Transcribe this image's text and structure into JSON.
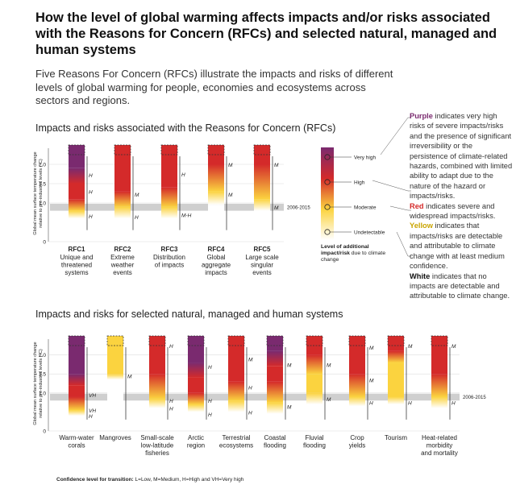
{
  "title": "How the level of global warming affects impacts and/or risks associated with the Reasons for Concern (RFCs) and selected natural, managed and human systems",
  "intro": "Five Reasons For Concern (RFCs) illustrate the impacts and risks of different levels of global warming for people, economies and ecosystems across sectors and regions.",
  "notes": [
    {
      "term": "Purple",
      "text": "indicates very high risks of severe impacts/risks and the presence of significant irreversibility or the persistence of climate-related hazards, combined with limited ability to adapt due to the nature of the hazard or impacts/risks.",
      "color": "#7a2a6f"
    },
    {
      "term": "Red",
      "text": "indicates severe and widespread impacts/risks.",
      "color": "#d42a2a"
    },
    {
      "term": "Yellow",
      "text": "indicates that impacts/risks are detectable and attributable to climate change with at least medium confidence.",
      "color": "#c9a400"
    },
    {
      "term": "White",
      "text": "indicates that no impacts are detectable and attributable to climate change.",
      "color": "#111111"
    }
  ],
  "confidence_note": {
    "label": "Confidence level  for transition:",
    "text": "L=Low, M=Medium, H=High and VH=Very high"
  },
  "chart_data": [
    {
      "type": "ember",
      "title": "Impacts and risks associated with the Reasons for Concern (RFCs)",
      "ylabel": [
        "Global mean surface temperature change",
        "relative to pre-industrial levels (°C)"
      ],
      "ylim": [
        0,
        2.5
      ],
      "yticks": [
        0,
        {
          "value": 1,
          "label": "1.0"
        },
        1.5,
        {
          "value": 2,
          "label": "2.0"
        }
      ],
      "grid": true,
      "colors": {
        "white": "#ffffff",
        "yellow": "#fbd33f",
        "red": "#d42a2a",
        "purple": "#7a2a6f"
      },
      "band": {
        "label": "2006-2015",
        "range": [
          0.8,
          0.98
        ]
      },
      "embers": [
        {
          "code": "RFC1",
          "lines": [
            "Unique and",
            "threatened",
            "systems"
          ],
          "stops": [
            {
              "t": 0.3,
              "c": "white"
            },
            {
              "t": 0.6,
              "c": "white"
            },
            {
              "t": 0.8,
              "c": "yellow"
            },
            {
              "t": 1.1,
              "c": "red"
            },
            {
              "t": 1.5,
              "c": "red"
            },
            {
              "t": 1.9,
              "c": "purple"
            },
            {
              "t": 2.5,
              "c": "purple"
            }
          ],
          "confidence": [
            {
              "t": 1.73,
              "label": "H"
            },
            {
              "t": 1.3,
              "label": "H"
            },
            {
              "t": 0.67,
              "label": "H"
            }
          ]
        },
        {
          "code": "RFC2",
          "lines": [
            "Extreme",
            "weather",
            "events"
          ],
          "stops": [
            {
              "t": 0.3,
              "c": "white"
            },
            {
              "t": 0.6,
              "c": "white"
            },
            {
              "t": 0.9,
              "c": "yellow"
            },
            {
              "t": 1.3,
              "c": "red"
            },
            {
              "t": 2.5,
              "c": "red"
            }
          ],
          "confidence": [
            {
              "t": 1.23,
              "label": "M"
            },
            {
              "t": 0.65,
              "label": "H"
            }
          ]
        },
        {
          "code": "RFC3",
          "lines": [
            "Distribution",
            "of impacts"
          ],
          "stops": [
            {
              "t": 0.3,
              "c": "white"
            },
            {
              "t": 0.6,
              "c": "white"
            },
            {
              "t": 0.9,
              "c": "yellow"
            },
            {
              "t": 1.4,
              "c": "red"
            },
            {
              "t": 2.5,
              "c": "red"
            }
          ],
          "confidence": [
            {
              "t": 1.75,
              "label": "H"
            },
            {
              "t": 0.7,
              "label": "M-H"
            }
          ]
        },
        {
          "code": "RFC4",
          "lines": [
            "Global",
            "aggregate",
            "impacts"
          ],
          "stops": [
            {
              "t": 0.3,
              "c": "white"
            },
            {
              "t": 0.95,
              "c": "white"
            },
            {
              "t": 1.3,
              "c": "yellow"
            },
            {
              "t": 2.0,
              "c": "red"
            },
            {
              "t": 2.5,
              "c": "red"
            }
          ],
          "confidence": [
            {
              "t": 2.0,
              "label": "M"
            },
            {
              "t": 1.23,
              "label": "M"
            }
          ]
        },
        {
          "code": "RFC5",
          "lines": [
            "Large scale",
            "singular",
            "events"
          ],
          "stops": [
            {
              "t": 0.3,
              "c": "white"
            },
            {
              "t": 0.8,
              "c": "white"
            },
            {
              "t": 1.1,
              "c": "yellow"
            },
            {
              "t": 2.0,
              "c": "red"
            },
            {
              "t": 2.5,
              "c": "red"
            }
          ],
          "confidence": [
            {
              "t": 2.0,
              "label": "M"
            },
            {
              "t": 0.9,
              "label": "M"
            }
          ]
        }
      ],
      "legend": {
        "levels": [
          {
            "label": "Very high",
            "c": "purple"
          },
          {
            "label": "High",
            "c": "red"
          },
          {
            "label": "Moderate",
            "c": "yellow"
          },
          {
            "label": "Undetectable",
            "c": "white"
          }
        ],
        "title_bold": "Level of additional impact/risk",
        "title": "due to climate change"
      }
    },
    {
      "type": "ember",
      "title": "Impacts and risks for selected natural, managed and human systems",
      "ylabel": [
        "Global mean surface temperature change",
        "relative to pre-industrial levels (°C)"
      ],
      "ylim": [
        0,
        2.5
      ],
      "yticks": [
        0,
        {
          "value": 1,
          "label": "1.0"
        },
        1.5,
        {
          "value": 2,
          "label": "2.0"
        }
      ],
      "grid": true,
      "colors": {
        "white": "#ffffff",
        "yellow": "#fbd33f",
        "red": "#d42a2a",
        "purple": "#7a2a6f"
      },
      "band": {
        "label": "2006-2015",
        "range": [
          0.8,
          0.98
        ]
      },
      "embers": [
        {
          "lines": [
            "Warm-water",
            "corals"
          ],
          "stops": [
            {
              "t": 0.3,
              "c": "white"
            },
            {
              "t": 0.4,
              "c": "white"
            },
            {
              "t": 0.55,
              "c": "yellow"
            },
            {
              "t": 0.9,
              "c": "red"
            },
            {
              "t": 1.2,
              "c": "red"
            },
            {
              "t": 1.5,
              "c": "purple"
            },
            {
              "t": 2.5,
              "c": "purple"
            }
          ],
          "confidence": [
            {
              "t": 0.95,
              "label": "VH"
            },
            {
              "t": 0.55,
              "label": "VH"
            },
            {
              "t": 0.4,
              "label": "H"
            }
          ]
        },
        {
          "lines": [
            "Mangroves"
          ],
          "stops": [
            {
              "t": 0.3,
              "c": "white"
            },
            {
              "t": 1.35,
              "c": "white"
            },
            {
              "t": 1.5,
              "c": "yellow"
            },
            {
              "t": 2.5,
              "c": "yellow"
            }
          ],
          "confidence": [
            {
              "t": 1.45,
              "label": "M"
            }
          ]
        },
        {
          "lines": [
            "Small-scale",
            "low-latitude",
            "fisheries"
          ],
          "stops": [
            {
              "t": 0.3,
              "c": "white"
            },
            {
              "t": 0.6,
              "c": "white"
            },
            {
              "t": 0.85,
              "c": "yellow"
            },
            {
              "t": 1.5,
              "c": "red"
            },
            {
              "t": 2.5,
              "c": "red"
            }
          ],
          "confidence": [
            {
              "t": 2.25,
              "label": "H"
            },
            {
              "t": 0.8,
              "label": "H"
            },
            {
              "t": 0.6,
              "label": "H"
            }
          ]
        },
        {
          "lines": [
            "Arctic",
            "region"
          ],
          "stops": [
            {
              "t": 0.3,
              "c": "white"
            },
            {
              "t": 0.5,
              "c": "white"
            },
            {
              "t": 0.7,
              "c": "yellow"
            },
            {
              "t": 1.0,
              "c": "red"
            },
            {
              "t": 1.4,
              "c": "red"
            },
            {
              "t": 1.8,
              "c": "purple"
            },
            {
              "t": 2.5,
              "c": "purple"
            }
          ],
          "confidence": [
            {
              "t": 1.7,
              "label": "H"
            },
            {
              "t": 0.8,
              "label": "H"
            },
            {
              "t": 0.45,
              "label": "H"
            }
          ]
        },
        {
          "lines": [
            "Terrestrial",
            "ecosystems"
          ],
          "stops": [
            {
              "t": 0.3,
              "c": "white"
            },
            {
              "t": 0.5,
              "c": "white"
            },
            {
              "t": 0.8,
              "c": "yellow"
            },
            {
              "t": 1.3,
              "c": "red"
            },
            {
              "t": 2.5,
              "c": "red"
            }
          ],
          "confidence": [
            {
              "t": 1.9,
              "label": "M"
            },
            {
              "t": 1.15,
              "label": "H"
            },
            {
              "t": 0.5,
              "label": "H"
            }
          ]
        },
        {
          "lines": [
            "Coastal",
            "flooding"
          ],
          "stops": [
            {
              "t": 0.3,
              "c": "white"
            },
            {
              "t": 0.45,
              "c": "white"
            },
            {
              "t": 0.75,
              "c": "yellow"
            },
            {
              "t": 1.3,
              "c": "red"
            },
            {
              "t": 1.7,
              "c": "red"
            },
            {
              "t": 2.1,
              "c": "purple"
            },
            {
              "t": 2.5,
              "c": "purple"
            }
          ],
          "confidence": [
            {
              "t": 1.75,
              "label": "M"
            },
            {
              "t": 0.65,
              "label": "M"
            }
          ]
        },
        {
          "lines": [
            "Fluvial",
            "flooding"
          ],
          "stops": [
            {
              "t": 0.3,
              "c": "white"
            },
            {
              "t": 0.7,
              "c": "white"
            },
            {
              "t": 1.0,
              "c": "yellow"
            },
            {
              "t": 1.5,
              "c": "yellow"
            },
            {
              "t": 2.0,
              "c": "red"
            },
            {
              "t": 2.5,
              "c": "red"
            }
          ],
          "confidence": [
            {
              "t": 1.75,
              "label": "M"
            },
            {
              "t": 0.85,
              "label": "M"
            }
          ]
        },
        {
          "lines": [
            "Crop",
            "yields"
          ],
          "stops": [
            {
              "t": 0.3,
              "c": "white"
            },
            {
              "t": 0.65,
              "c": "white"
            },
            {
              "t": 0.9,
              "c": "yellow"
            },
            {
              "t": 1.5,
              "c": "red"
            },
            {
              "t": 2.5,
              "c": "red"
            }
          ],
          "confidence": [
            {
              "t": 2.2,
              "label": "M"
            },
            {
              "t": 1.35,
              "label": "M"
            },
            {
              "t": 0.75,
              "label": "H"
            }
          ]
        },
        {
          "lines": [
            "Tourism"
          ],
          "stops": [
            {
              "t": 0.3,
              "c": "white"
            },
            {
              "t": 0.7,
              "c": "white"
            },
            {
              "t": 0.9,
              "c": "yellow"
            },
            {
              "t": 1.8,
              "c": "yellow"
            },
            {
              "t": 2.1,
              "c": "red"
            },
            {
              "t": 2.5,
              "c": "red"
            }
          ],
          "confidence": [
            {
              "t": 2.25,
              "label": "M"
            },
            {
              "t": 0.75,
              "label": "H"
            }
          ]
        },
        {
          "lines": [
            "Heat-related",
            "morbidity",
            "and mortality"
          ],
          "stops": [
            {
              "t": 0.3,
              "c": "white"
            },
            {
              "t": 0.6,
              "c": "white"
            },
            {
              "t": 0.9,
              "c": "yellow"
            },
            {
              "t": 1.5,
              "c": "red"
            },
            {
              "t": 2.5,
              "c": "red"
            }
          ],
          "confidence": [
            {
              "t": 2.25,
              "label": "M"
            },
            {
              "t": 0.75,
              "label": "H"
            }
          ]
        }
      ]
    }
  ]
}
